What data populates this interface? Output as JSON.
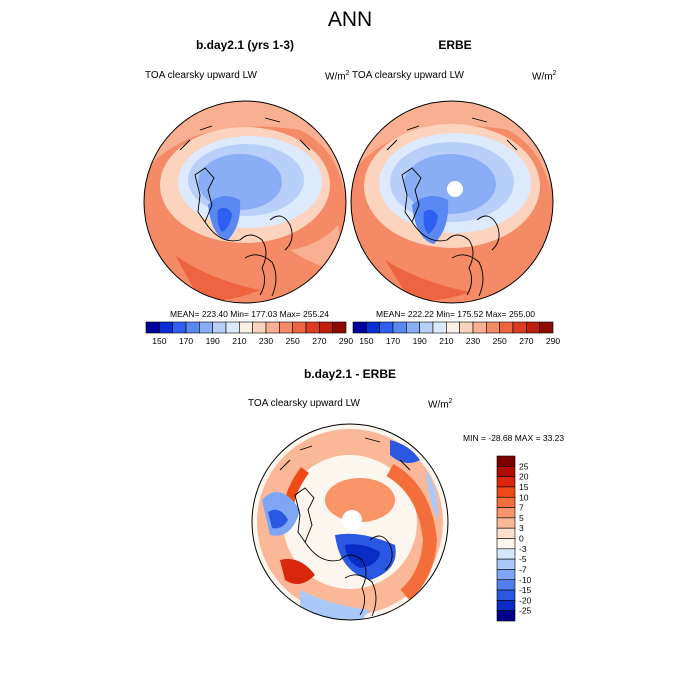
{
  "main_title": "ANN",
  "panels": [
    {
      "title": "b.day2.1 (yrs 1-3)",
      "variable": "TOA clearsky upward LW",
      "units_base": "W/m",
      "units_exp": "2",
      "stats": "MEAN= 223.40  Min= 177.03  Max= 255.24"
    },
    {
      "title": "ERBE",
      "variable": "TOA clearsky upward LW",
      "units_base": "W/m",
      "units_exp": "2",
      "stats": "MEAN= 222.22  Min= 175.52  Max= 255.00"
    },
    {
      "title": "b.day2.1 - ERBE",
      "variable": "TOA clearsky upward LW",
      "units_base": "W/m",
      "units_exp": "2",
      "stats": "MIN = -28.68 MAX =  33.23"
    }
  ],
  "chart_data": [
    {
      "type": "heatmap",
      "projection": "north polar stereographic",
      "title": "b.day2.1 (yrs 1-3)",
      "variable": "TOA clearsky upward LW",
      "units": "W/m2",
      "mean": 223.4,
      "min": 177.03,
      "max": 255.24,
      "colorbar": {
        "orientation": "horizontal",
        "levels": [
          150,
          160,
          170,
          180,
          190,
          200,
          210,
          220,
          230,
          240,
          250,
          260,
          270,
          280,
          290
        ],
        "tick_labels": [
          "150",
          "170",
          "190",
          "210",
          "230",
          "250",
          "270",
          "290"
        ],
        "colors": [
          "#00009a",
          "#0a2ed6",
          "#2e5ff0",
          "#5a88f2",
          "#8aaef6",
          "#b8cff9",
          "#dde9fc",
          "#fdf1e8",
          "#fcd3bd",
          "#f9af91",
          "#f48a66",
          "#ee6440",
          "#de3c22",
          "#c01e0c",
          "#8e0a00"
        ]
      }
    },
    {
      "type": "heatmap",
      "projection": "north polar stereographic",
      "title": "ERBE",
      "variable": "TOA clearsky upward LW",
      "units": "W/m2",
      "mean": 222.22,
      "min": 175.52,
      "max": 255.0,
      "colorbar": {
        "orientation": "horizontal",
        "levels": [
          150,
          160,
          170,
          180,
          190,
          200,
          210,
          220,
          230,
          240,
          250,
          260,
          270,
          280,
          290
        ],
        "tick_labels": [
          "150",
          "170",
          "190",
          "210",
          "230",
          "250",
          "270",
          "290"
        ],
        "colors": [
          "#00009a",
          "#0a2ed6",
          "#2e5ff0",
          "#5a88f2",
          "#8aaef6",
          "#b8cff9",
          "#dde9fc",
          "#fdf1e8",
          "#fcd3bd",
          "#f9af91",
          "#f48a66",
          "#ee6440",
          "#de3c22",
          "#c01e0c",
          "#8e0a00"
        ]
      }
    },
    {
      "type": "heatmap",
      "projection": "north polar stereographic",
      "title": "b.day2.1 - ERBE",
      "variable": "TOA clearsky upward LW",
      "units": "W/m2",
      "min": -28.68,
      "max": 33.23,
      "colorbar": {
        "orientation": "vertical",
        "tick_labels": [
          "25",
          "20",
          "15",
          "10",
          "7",
          "5",
          "3",
          "0",
          "-3",
          "-5",
          "-7",
          "-10",
          "-15",
          "-20",
          "-25"
        ],
        "colors": [
          "#7a0000",
          "#b00c00",
          "#d8270a",
          "#ee4a18",
          "#f46e3c",
          "#f89468",
          "#fbb898",
          "#fde0cc",
          "#fdf6ee",
          "#d6e6fc",
          "#aac8f8",
          "#7ea6f4",
          "#5080ee",
          "#2a58e2",
          "#0a2cc6",
          "#00008a"
        ]
      }
    }
  ]
}
